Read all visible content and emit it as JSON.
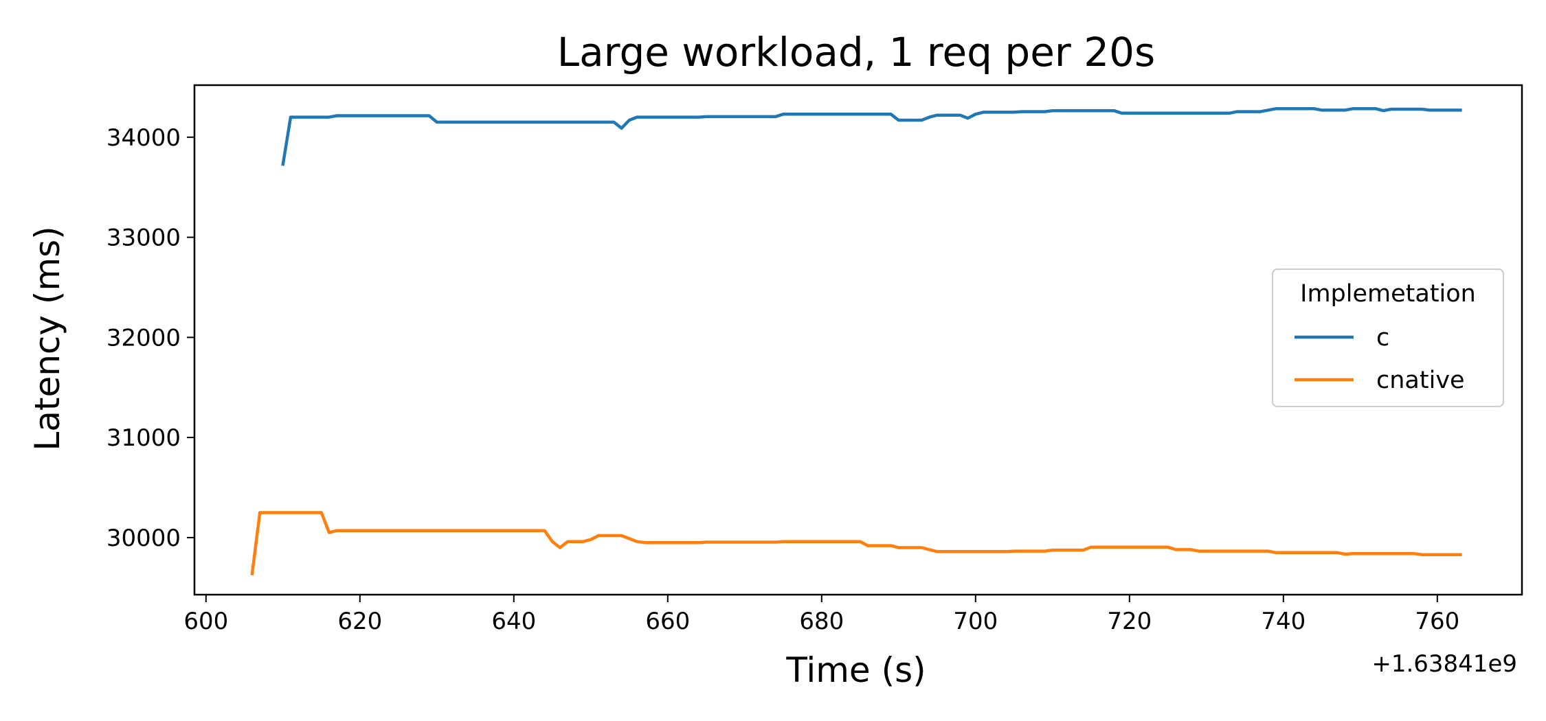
{
  "chart_data": {
    "type": "line",
    "title": "Large workload, 1 req per 20s",
    "xlabel": "Time (s)",
    "ylabel": "Latency (ms)",
    "x_offset_label": "+1.63841e9",
    "xlim": [
      598.5,
      771
    ],
    "ylim": [
      29430,
      34520
    ],
    "xticks": [
      600,
      620,
      640,
      660,
      680,
      700,
      720,
      740,
      760
    ],
    "xtick_labels": [
      "600",
      "620",
      "640",
      "660",
      "680",
      "700",
      "720",
      "740",
      "760"
    ],
    "yticks": [
      30000,
      31000,
      32000,
      33000,
      34000
    ],
    "ytick_labels": [
      "30000",
      "31000",
      "32000",
      "33000",
      "34000"
    ],
    "grid": false,
    "legend": {
      "title": "Implemetation",
      "position": "center-right"
    },
    "series": [
      {
        "name": "c",
        "color": "#1f77b4",
        "x": [
          610,
          611,
          612,
          616,
          617,
          629,
          630,
          653,
          654,
          655,
          656,
          664,
          665,
          674,
          675,
          689,
          690,
          693,
          694,
          695,
          698,
          699,
          700,
          701,
          702,
          705,
          706,
          709,
          710,
          718,
          719,
          733,
          734,
          737,
          738,
          739,
          744,
          745,
          748,
          749,
          752,
          753,
          754,
          758,
          759,
          763
        ],
        "y": [
          33730,
          34200,
          34200,
          34200,
          34215,
          34215,
          34150,
          34150,
          34090,
          34170,
          34200,
          34200,
          34205,
          34205,
          34230,
          34230,
          34170,
          34170,
          34200,
          34220,
          34220,
          34190,
          34230,
          34250,
          34250,
          34250,
          34255,
          34255,
          34265,
          34265,
          34240,
          34240,
          34255,
          34255,
          34270,
          34285,
          34285,
          34270,
          34270,
          34285,
          34285,
          34265,
          34280,
          34280,
          34270,
          34270
        ]
      },
      {
        "name": "cnative",
        "color": "#ff7f0e",
        "x": [
          606,
          607,
          615,
          616,
          617,
          644,
          645,
          646,
          647,
          649,
          650,
          651,
          652,
          654,
          655,
          656,
          657,
          664,
          665,
          674,
          675,
          685,
          686,
          689,
          690,
          693,
          694,
          695,
          704,
          705,
          709,
          710,
          714,
          715,
          725,
          726,
          728,
          729,
          738,
          739,
          747,
          748,
          749,
          757,
          758,
          763
        ],
        "y": [
          29640,
          30250,
          30250,
          30050,
          30070,
          30070,
          29960,
          29900,
          29960,
          29960,
          29980,
          30020,
          30020,
          30020,
          29990,
          29960,
          29950,
          29950,
          29955,
          29955,
          29960,
          29960,
          29920,
          29920,
          29900,
          29900,
          29880,
          29860,
          29860,
          29865,
          29865,
          29875,
          29875,
          29905,
          29905,
          29880,
          29880,
          29865,
          29865,
          29850,
          29850,
          29835,
          29840,
          29840,
          29830,
          29830
        ]
      }
    ]
  }
}
